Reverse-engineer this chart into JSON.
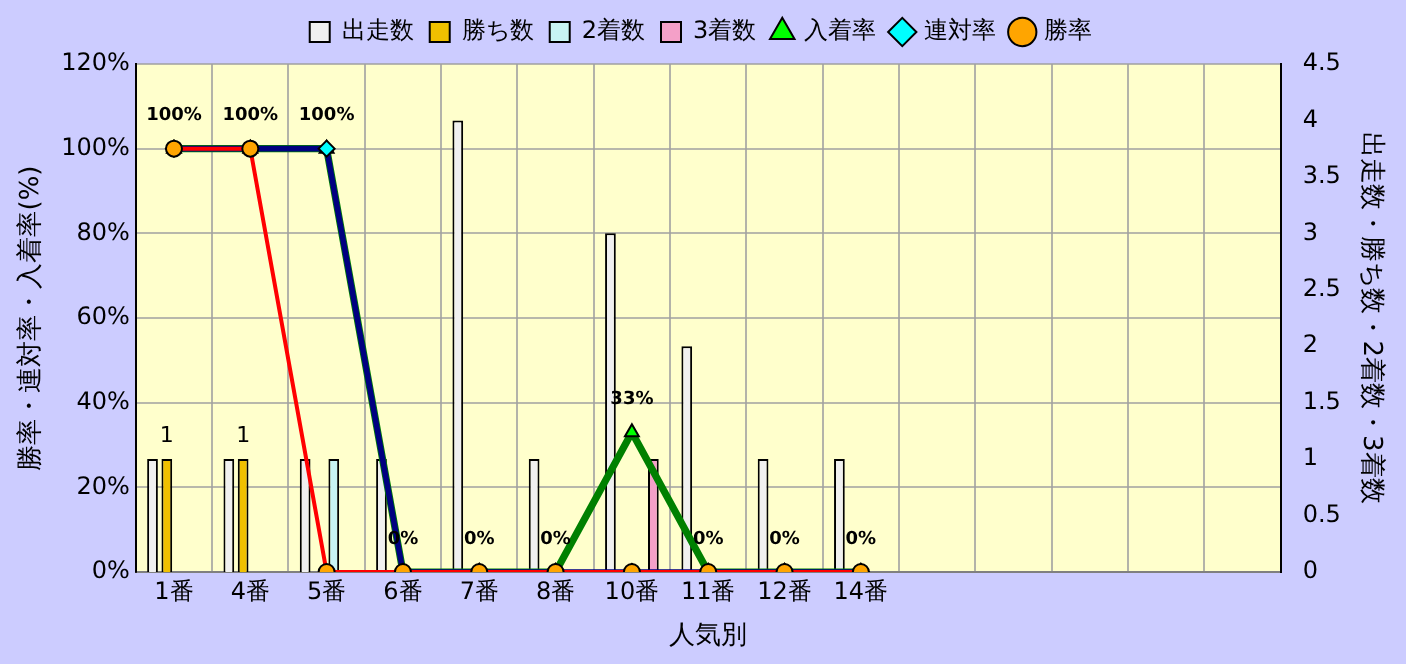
{
  "chart_data": {
    "type": "bar",
    "xlabel": "人気別",
    "ylabel": "勝率・連対率・入着率(%)",
    "y2label": "出走数・勝ち数・2着数・3着数",
    "categories": [
      "1番",
      "4番",
      "5番",
      "6番",
      "7番",
      "8番",
      "10番",
      "11番",
      "12番",
      "14番",
      null,
      null,
      null,
      null,
      null
    ],
    "series": [
      {
        "name": "出走数",
        "axis": "y2",
        "color": "#f0f0f0",
        "values": [
          1,
          1,
          1,
          1,
          4,
          1,
          3,
          2,
          1,
          1,
          null,
          null,
          null,
          null,
          null
        ]
      },
      {
        "name": "勝ち数",
        "axis": "y2",
        "color": "#f0c000",
        "values": [
          1,
          1,
          0,
          0,
          0,
          0,
          0,
          0,
          0,
          0,
          null,
          null,
          null,
          null,
          null
        ],
        "value_labels": [
          "1",
          "1",
          null,
          null,
          null,
          null,
          null,
          null,
          null,
          null,
          null,
          null,
          null,
          null,
          null
        ]
      },
      {
        "name": "2着数",
        "axis": "y2",
        "color": "#c8f4f4",
        "values": [
          0,
          0,
          1,
          0,
          0,
          0,
          0,
          0,
          0,
          0,
          null,
          null,
          null,
          null,
          null
        ]
      },
      {
        "name": "3着数",
        "axis": "y2",
        "color": "#f4a0c8",
        "values": [
          0,
          0,
          0,
          0,
          0,
          0,
          1,
          0,
          0,
          0,
          null,
          null,
          null,
          null,
          null
        ]
      },
      {
        "name": "入着率",
        "type": "line",
        "axis": "y",
        "color": "#008000",
        "marker": "triangle",
        "values": [
          100,
          100,
          100,
          0,
          0,
          0,
          33,
          0,
          0,
          0,
          null,
          null,
          null,
          null,
          null
        ],
        "value_labels": [
          "100%",
          "100%",
          "100%",
          "0%",
          "0%",
          "0%",
          "33%",
          "0%",
          "0%",
          "0%",
          null,
          null,
          null,
          null,
          null
        ]
      },
      {
        "name": "連対率",
        "type": "line",
        "axis": "y",
        "color": "#000080",
        "marker": "diamond",
        "values": [
          100,
          100,
          100,
          0,
          0,
          0,
          0,
          0,
          0,
          0,
          null,
          null,
          null,
          null,
          null
        ]
      },
      {
        "name": "勝率",
        "type": "line",
        "axis": "y",
        "color": "#ff0000",
        "marker": "circle",
        "values": [
          100,
          100,
          0,
          0,
          0,
          0,
          0,
          0,
          0,
          0,
          null,
          null,
          null,
          null,
          null
        ]
      }
    ],
    "ylim": [
      0,
      120
    ],
    "yticks": [
      {
        "value": 0,
        "label": "0%"
      },
      {
        "value": 20,
        "label": "20%"
      },
      {
        "value": 40,
        "label": "40%"
      },
      {
        "value": 60,
        "label": "60%"
      },
      {
        "value": 80,
        "label": "80%"
      },
      {
        "value": 100,
        "label": "100%"
      },
      {
        "value": 120,
        "label": "120%"
      }
    ],
    "y2lim": [
      0,
      4.5
    ],
    "y2ticks": [
      0,
      0.5,
      1,
      1.5,
      2,
      2.5,
      3,
      3.5,
      4,
      4.5
    ],
    "grid": true,
    "legend": "top"
  }
}
